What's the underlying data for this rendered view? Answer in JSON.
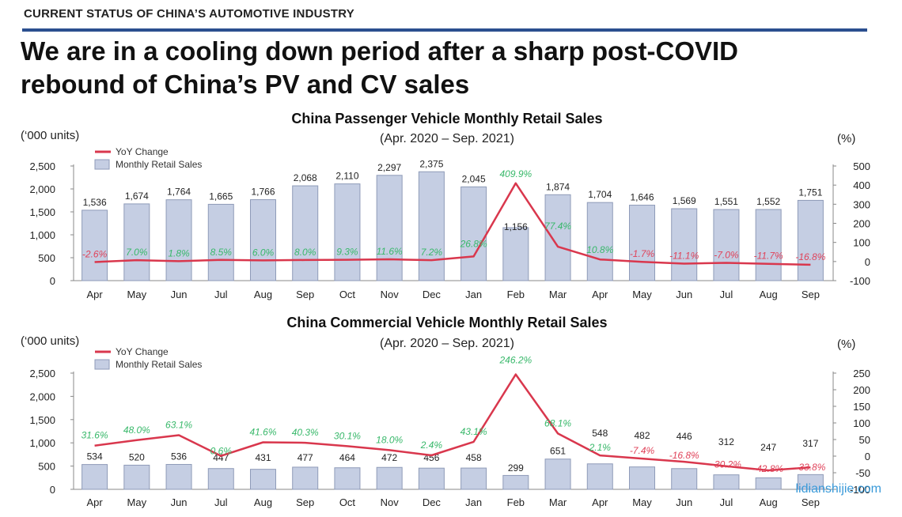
{
  "header": {
    "section_label": "CURRENT STATUS OF CHINA’S AUTOMOTIVE INDUSTRY",
    "headline_line1": "We are in a cooling down period after a sharp post-COVID",
    "headline_line2": "rebound of China’s PV and CV sales"
  },
  "watermark": "lidianshijie.com",
  "colors": {
    "bar_fill": "#c5cee3",
    "bar_stroke": "#8f9bb8",
    "line": "#d9374d",
    "yoy_positive": "#38b86a",
    "yoy_negative": "#e0435a"
  },
  "chart_data": [
    {
      "type": "bar",
      "title": "China Passenger Vehicle Monthly Retail Sales",
      "subtitle": "(Apr. 2020 – Sep. 2021)",
      "ylabel": "(‘000 units)",
      "y2label": "(%)",
      "ylim": [
        0,
        2500
      ],
      "y2lim": [
        -100,
        500
      ],
      "yticks": [
        "0",
        "500",
        "1,000",
        "1,500",
        "2,000",
        "2,500"
      ],
      "y2ticks": [
        "-100",
        "0",
        "100",
        "200",
        "300",
        "400",
        "500"
      ],
      "categories": [
        "Apr",
        "May",
        "Jun",
        "Jul",
        "Aug",
        "Sep",
        "Oct",
        "Nov",
        "Dec",
        "Jan",
        "Feb",
        "Mar",
        "Apr",
        "May",
        "Jun",
        "Jul",
        "Aug",
        "Sep"
      ],
      "legend": [
        "YoY Change",
        "Monthly Retail Sales"
      ],
      "series": [
        {
          "name": "Monthly Retail Sales",
          "axis": "left",
          "values": [
            1536,
            1674,
            1764,
            1665,
            1766,
            2068,
            2110,
            2297,
            2375,
            2045,
            1156,
            1874,
            1704,
            1646,
            1569,
            1551,
            1552,
            1751
          ],
          "labels": [
            "1,536",
            "1,674",
            "1,764",
            "1,665",
            "1,766",
            "2,068",
            "2,110",
            "2,297",
            "2,375",
            "2,045",
            "1,156",
            "1,874",
            "1,704",
            "1,646",
            "1,569",
            "1,551",
            "1,552",
            "1,751"
          ]
        },
        {
          "name": "YoY Change",
          "axis": "right",
          "values": [
            -2.6,
            7.0,
            1.8,
            8.5,
            6.0,
            8.0,
            9.3,
            11.6,
            7.2,
            26.8,
            409.9,
            77.4,
            10.8,
            -1.7,
            -11.1,
            -7.0,
            -11.7,
            -16.8
          ],
          "labels": [
            "-2.6%",
            "7.0%",
            "1.8%",
            "8.5%",
            "6.0%",
            "8.0%",
            "9.3%",
            "11.6%",
            "7.2%",
            "26.8%",
            "409.9%",
            "77.4%",
            "10.8%",
            "-1.7%",
            "-11.1%",
            "-7.0%",
            "-11.7%",
            "-16.8%"
          ]
        }
      ]
    },
    {
      "type": "bar",
      "title": "China Commercial Vehicle Monthly Retail Sales",
      "subtitle": "(Apr. 2020 – Sep. 2021)",
      "ylabel": "(‘000 units)",
      "y2label": "(%)",
      "ylim": [
        0,
        2500
      ],
      "y2lim": [
        -100,
        250
      ],
      "yticks": [
        "0",
        "500",
        "1,000",
        "1,500",
        "2,000",
        "2,500"
      ],
      "y2ticks": [
        "-100",
        "-50",
        "0",
        "50",
        "100",
        "150",
        "200",
        "250"
      ],
      "categories": [
        "Apr",
        "May",
        "Jun",
        "Jul",
        "Aug",
        "Sep",
        "Oct",
        "Nov",
        "Dec",
        "Jan",
        "Feb",
        "Mar",
        "Apr",
        "May",
        "Jun",
        "Jul",
        "Aug",
        "Sep"
      ],
      "legend": [
        "YoY Change",
        "Monthly Retail Sales"
      ],
      "series": [
        {
          "name": "Monthly Retail Sales",
          "axis": "left",
          "values": [
            534,
            520,
            536,
            447,
            431,
            477,
            464,
            472,
            456,
            458,
            299,
            651,
            548,
            482,
            446,
            312,
            247,
            317
          ],
          "labels": [
            "534",
            "520",
            "536",
            "447",
            "431",
            "477",
            "464",
            "472",
            "456",
            "458",
            "299",
            "651",
            "548",
            "482",
            "446",
            "312",
            "247",
            "317"
          ]
        },
        {
          "name": "YoY Change",
          "axis": "right",
          "values": [
            31.6,
            48.0,
            63.1,
            0.6,
            41.6,
            40.3,
            30.1,
            18.0,
            2.4,
            43.1,
            246.2,
            68.1,
            2.1,
            -7.4,
            -16.8,
            -30.2,
            -42.8,
            -33.8
          ],
          "labels": [
            "31.6%",
            "48.0%",
            "63.1%",
            "0.6%",
            "41.6%",
            "40.3%",
            "30.1%",
            "18.0%",
            "2.4%",
            "43.1%",
            "246.2%",
            "68.1%",
            "2.1%",
            "-7.4%",
            "-16.8%",
            "-30.2%",
            "-42.8%",
            "-33.8%"
          ]
        }
      ]
    }
  ]
}
